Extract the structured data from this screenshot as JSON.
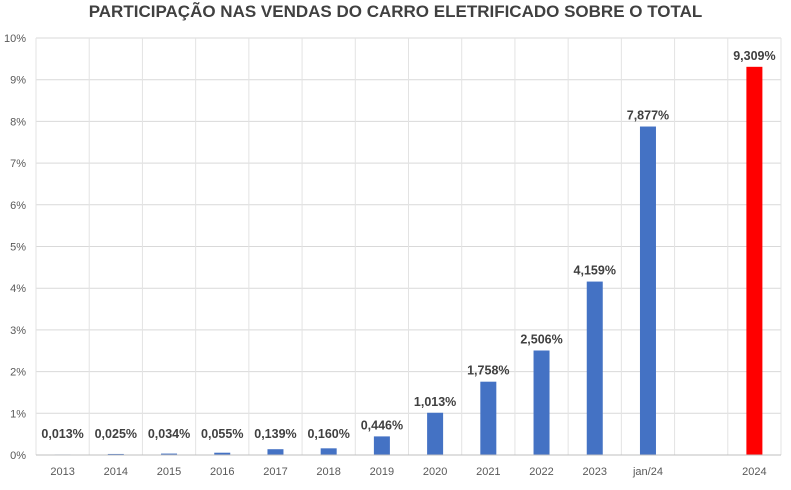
{
  "chart_data": {
    "type": "bar",
    "title": "PARTICIPAÇÃO NAS VENDAS DO CARRO ELETRIFICADO SOBRE O TOTAL",
    "xlabel": "",
    "ylabel": "",
    "ylim": [
      0,
      10
    ],
    "yticks": [
      "0%",
      "1%",
      "2%",
      "3%",
      "4%",
      "5%",
      "6%",
      "7%",
      "8%",
      "9%",
      "10%"
    ],
    "grid": true,
    "categories": [
      "2013",
      "2014",
      "2015",
      "2016",
      "2017",
      "2018",
      "2019",
      "2020",
      "2021",
      "2022",
      "2023",
      "jan/24",
      "",
      "2024"
    ],
    "values": [
      0.013,
      0.025,
      0.034,
      0.055,
      0.139,
      0.16,
      0.446,
      1.013,
      1.758,
      2.506,
      4.159,
      7.877,
      null,
      9.309
    ],
    "data_labels": [
      "0,013%",
      "0,025%",
      "0,034%",
      "0,055%",
      "0,139%",
      "0,160%",
      "0,446%",
      "1,013%",
      "1,758%",
      "2,506%",
      "4,159%",
      "7,877%",
      "",
      "9,309%"
    ],
    "colors": [
      "#4472C4",
      "#4472C4",
      "#4472C4",
      "#4472C4",
      "#4472C4",
      "#4472C4",
      "#4472C4",
      "#4472C4",
      "#4472C4",
      "#4472C4",
      "#4472C4",
      "#4472C4",
      "#4472C4",
      "#FF0000"
    ]
  }
}
